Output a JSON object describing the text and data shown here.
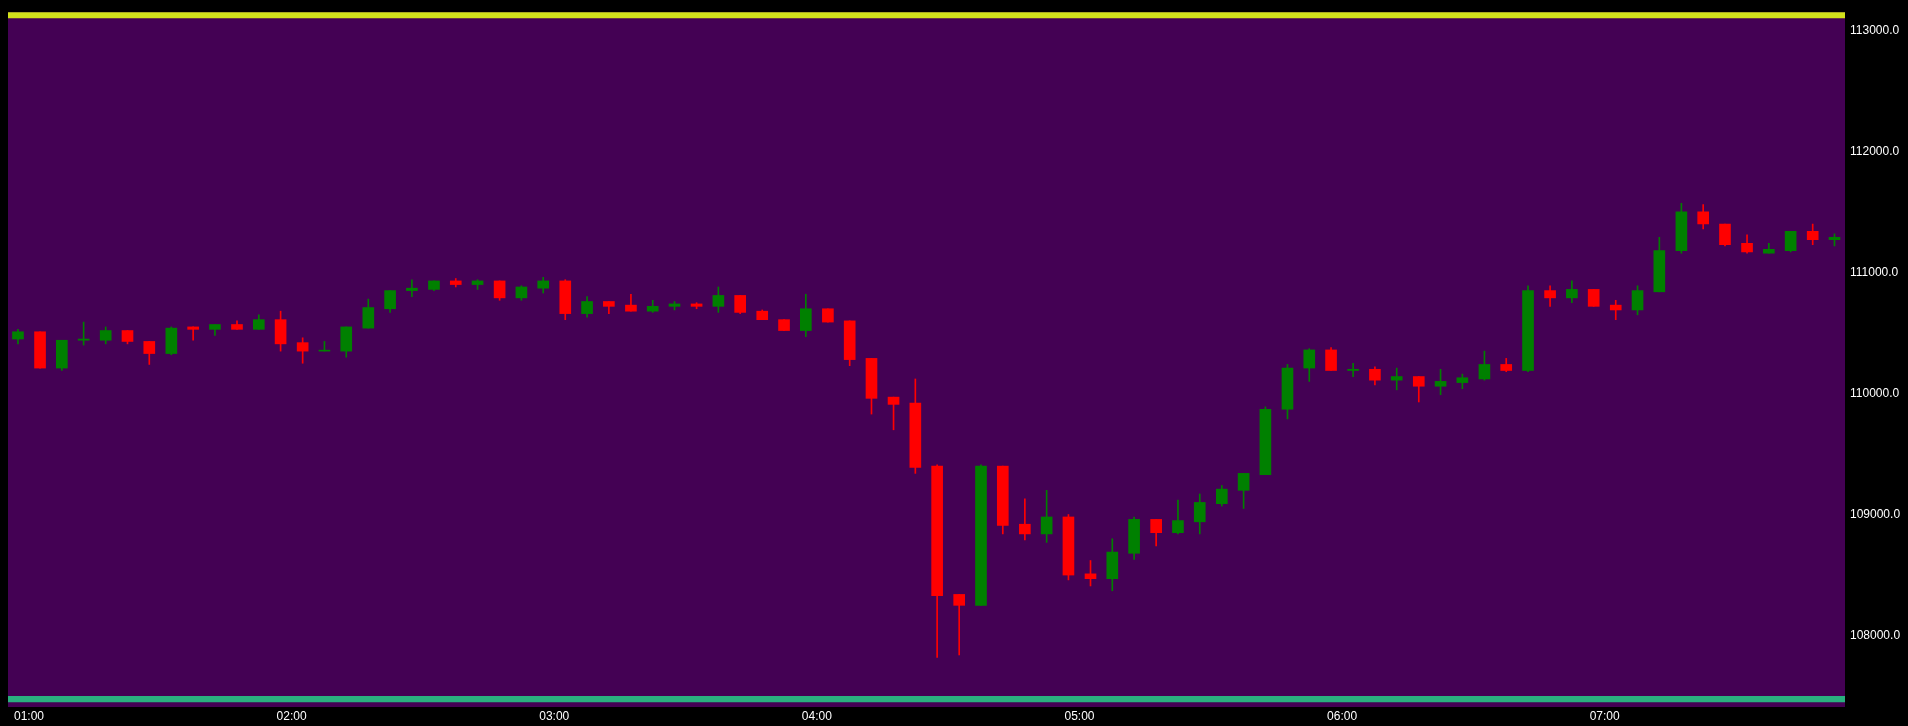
{
  "chart_data": {
    "type": "candlestick",
    "x": [
      0.958,
      1.042,
      1.125,
      1.208,
      1.292,
      1.375,
      1.458,
      1.542,
      1.625,
      1.708,
      1.792,
      1.875,
      1.958,
      2.042,
      2.125,
      2.208,
      2.292,
      2.375,
      2.458,
      2.542,
      2.625,
      2.708,
      2.792,
      2.875,
      2.958,
      3.042,
      3.125,
      3.208,
      3.292,
      3.375,
      3.458,
      3.542,
      3.625,
      3.708,
      3.792,
      3.875,
      3.958,
      4.042,
      4.125,
      4.208,
      4.292,
      4.375,
      4.458,
      4.542,
      4.625,
      4.708,
      4.792,
      4.875,
      4.958,
      5.042,
      5.125,
      5.208,
      5.292,
      5.375,
      5.458,
      5.542,
      5.625,
      5.708,
      5.792,
      5.875,
      5.958,
      6.042,
      6.125,
      6.208,
      6.292,
      6.375,
      6.458,
      6.542,
      6.625,
      6.708,
      6.792,
      6.875,
      6.958,
      7.042,
      7.125,
      7.208,
      7.292,
      7.375,
      7.458,
      7.542,
      7.625,
      7.708,
      7.792,
      7.875
    ],
    "ohlc": [
      [
        110450,
        110530,
        110410,
        110510
      ],
      [
        110510,
        110510,
        110210,
        110210
      ],
      [
        110210,
        110440,
        110190,
        110440
      ],
      [
        110440,
        110590,
        110400,
        110450
      ],
      [
        110440,
        110550,
        110410,
        110520
      ],
      [
        110520,
        110520,
        110410,
        110430
      ],
      [
        110430,
        110430,
        110240,
        110330
      ],
      [
        110330,
        110550,
        110320,
        110540
      ],
      [
        110550,
        110550,
        110440,
        110530
      ],
      [
        110530,
        110570,
        110480,
        110570
      ],
      [
        110570,
        110600,
        110530,
        110530
      ],
      [
        110530,
        110650,
        110530,
        110610
      ],
      [
        110610,
        110680,
        110350,
        110410
      ],
      [
        110420,
        110460,
        110250,
        110350
      ],
      [
        110350,
        110430,
        110350,
        110350
      ],
      [
        110350,
        110550,
        110300,
        110550
      ],
      [
        110540,
        110780,
        110540,
        110710
      ],
      [
        110700,
        110850,
        110670,
        110850
      ],
      [
        110850,
        110940,
        110800,
        110870
      ],
      [
        110860,
        110930,
        110850,
        110930
      ],
      [
        110930,
        110950,
        110880,
        110900
      ],
      [
        110900,
        110940,
        110860,
        110930
      ],
      [
        110930,
        110930,
        110770,
        110790
      ],
      [
        110790,
        110890,
        110770,
        110880
      ],
      [
        110870,
        110960,
        110830,
        110930
      ],
      [
        110930,
        110940,
        110610,
        110660
      ],
      [
        110660,
        110800,
        110630,
        110760
      ],
      [
        110760,
        110760,
        110660,
        110720
      ],
      [
        110730,
        110820,
        110680,
        110680
      ],
      [
        110680,
        110770,
        110670,
        110720
      ],
      [
        110720,
        110760,
        110690,
        110740
      ],
      [
        110740,
        110750,
        110700,
        110720
      ],
      [
        110720,
        110880,
        110670,
        110810
      ],
      [
        110810,
        110810,
        110660,
        110670
      ],
      [
        110680,
        110690,
        110610,
        110610
      ],
      [
        110610,
        110610,
        110520,
        110520
      ],
      [
        110520,
        110820,
        110470,
        110700
      ],
      [
        110700,
        110700,
        110590,
        110590
      ],
      [
        110600,
        110600,
        110230,
        110280
      ],
      [
        110290,
        110290,
        109830,
        109960
      ],
      [
        109970,
        109970,
        109700,
        109910
      ],
      [
        109920,
        110120,
        109340,
        109390
      ],
      [
        109400,
        109410,
        107820,
        108330
      ],
      [
        108340,
        108340,
        107840,
        108250
      ],
      [
        108250,
        109410,
        108250,
        109400
      ],
      [
        109400,
        109400,
        108840,
        108910
      ],
      [
        108920,
        109130,
        108790,
        108840
      ],
      [
        108840,
        109200,
        108770,
        108980
      ],
      [
        108980,
        109000,
        108460,
        108500
      ],
      [
        108510,
        108620,
        108410,
        108470
      ],
      [
        108470,
        108800,
        108370,
        108690
      ],
      [
        108680,
        108980,
        108630,
        108960
      ],
      [
        108960,
        108960,
        108740,
        108850
      ],
      [
        108850,
        109120,
        108840,
        108950
      ],
      [
        108940,
        109170,
        108840,
        109100
      ],
      [
        109090,
        109240,
        109070,
        109210
      ],
      [
        109200,
        109340,
        109050,
        109340
      ],
      [
        109330,
        109890,
        109330,
        109870
      ],
      [
        109870,
        110240,
        109790,
        110210
      ],
      [
        110210,
        110370,
        110100,
        110360
      ],
      [
        110360,
        110380,
        110190,
        110190
      ],
      [
        110190,
        110250,
        110140,
        110200
      ],
      [
        110200,
        110220,
        110070,
        110110
      ],
      [
        110110,
        110210,
        110030,
        110140
      ],
      [
        110140,
        110140,
        109930,
        110060
      ],
      [
        110060,
        110200,
        109990,
        110100
      ],
      [
        110090,
        110160,
        110040,
        110130
      ],
      [
        110120,
        110350,
        110110,
        110240
      ],
      [
        110240,
        110290,
        110180,
        110190
      ],
      [
        110190,
        110890,
        110180,
        110850
      ],
      [
        110850,
        110890,
        110720,
        110790
      ],
      [
        110790,
        110930,
        110750,
        110860
      ],
      [
        110860,
        110860,
        110720,
        110720
      ],
      [
        110730,
        110770,
        110610,
        110690
      ],
      [
        110690,
        110890,
        110650,
        110850
      ],
      [
        110840,
        111290,
        110840,
        111180
      ],
      [
        111180,
        111570,
        111160,
        111500
      ],
      [
        111500,
        111560,
        111360,
        111400
      ],
      [
        111400,
        111400,
        111220,
        111230
      ],
      [
        111240,
        111310,
        111160,
        111170
      ],
      [
        111160,
        111240,
        111160,
        111190
      ],
      [
        111180,
        111340,
        111170,
        111340
      ],
      [
        111340,
        111400,
        111230,
        111270
      ],
      [
        111270,
        111320,
        111220,
        111290
      ]
    ],
    "colors": [
      "#008000",
      "#ff0000",
      "#008000",
      "#008000",
      "#008000",
      "#ff0000",
      "#ff0000",
      "#008000",
      "#ff0000",
      "#008000",
      "#ff0000",
      "#008000",
      "#ff0000",
      "#ff0000",
      "#008000",
      "#008000",
      "#008000",
      "#008000",
      "#008000",
      "#008000",
      "#ff0000",
      "#008000",
      "#ff0000",
      "#008000",
      "#008000",
      "#ff0000",
      "#008000",
      "#ff0000",
      "#ff0000",
      "#008000",
      "#008000",
      "#ff0000",
      "#008000",
      "#ff0000",
      "#ff0000",
      "#ff0000",
      "#008000",
      "#ff0000",
      "#ff0000",
      "#ff0000",
      "#ff0000",
      "#ff0000",
      "#ff0000",
      "#ff0000",
      "#008000",
      "#ff0000",
      "#ff0000",
      "#008000",
      "#ff0000",
      "#ff0000",
      "#008000",
      "#008000",
      "#ff0000",
      "#008000",
      "#008000",
      "#008000",
      "#008000",
      "#008000",
      "#008000",
      "#008000",
      "#ff0000",
      "#008000",
      "#ff0000",
      "#008000",
      "#ff0000",
      "#008000",
      "#008000",
      "#008000",
      "#ff0000",
      "#008000",
      "#ff0000",
      "#008000",
      "#ff0000",
      "#ff0000",
      "#008000",
      "#008000",
      "#008000",
      "#ff0000",
      "#ff0000",
      "#ff0000",
      "#008000",
      "#008000",
      "#ff0000",
      "#008000"
    ],
    "xlim": [
      0.92,
      7.915
    ],
    "ylim": [
      107410,
      113150
    ],
    "xticks": [
      {
        "value": 1,
        "label": "01:00"
      },
      {
        "value": 2,
        "label": "02:00"
      },
      {
        "value": 3,
        "label": "03:00"
      },
      {
        "value": 4,
        "label": "04:00"
      },
      {
        "value": 5,
        "label": "05:00"
      },
      {
        "value": 6,
        "label": "06:00"
      },
      {
        "value": 7,
        "label": "07:00"
      }
    ],
    "yticks": [
      {
        "value": 108000,
        "label": "108000.0"
      },
      {
        "value": 109000,
        "label": "109000.0"
      },
      {
        "value": 110000,
        "label": "110000.0"
      },
      {
        "value": 111000,
        "label": "111000.0"
      },
      {
        "value": 112000,
        "label": "112000.0"
      },
      {
        "value": 113000,
        "label": "113000.0"
      }
    ],
    "bands": [
      {
        "axis": "y",
        "from": 113100,
        "to": 113150,
        "color": "#d2e21b"
      },
      {
        "axis": "y",
        "from": 107450,
        "to": 107500,
        "color": "#2ab07f"
      }
    ]
  }
}
